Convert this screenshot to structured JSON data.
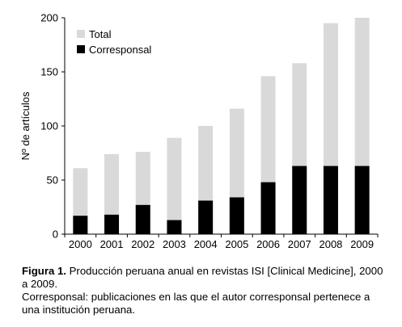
{
  "chart_data": {
    "type": "bar",
    "stacked": "overlay",
    "categories": [
      "2000",
      "2001",
      "2002",
      "2003",
      "2004",
      "2005",
      "2006",
      "2007",
      "2008",
      "2009"
    ],
    "series": [
      {
        "name": "Total",
        "color": "#d9d9d9",
        "values": [
          61,
          74,
          76,
          89,
          100,
          116,
          146,
          158,
          195,
          200
        ]
      },
      {
        "name": "Corresponsal",
        "color": "#000000",
        "values": [
          17,
          18,
          27,
          13,
          31,
          34,
          48,
          63,
          63,
          63
        ]
      }
    ],
    "ylabel": "Nº de artículos",
    "ylim": [
      0,
      200
    ],
    "yticks": [
      0,
      50,
      100,
      150,
      200
    ],
    "legend": "top-left",
    "grid": false
  },
  "caption": {
    "label": "Figura 1.",
    "text": "Producción peruana anual en revistas ISI [Clinical Medicine], 2000 a 2009.",
    "note": "Corresponsal: publicaciones en las que el autor corresponsal pertenece a una institución peruana."
  }
}
